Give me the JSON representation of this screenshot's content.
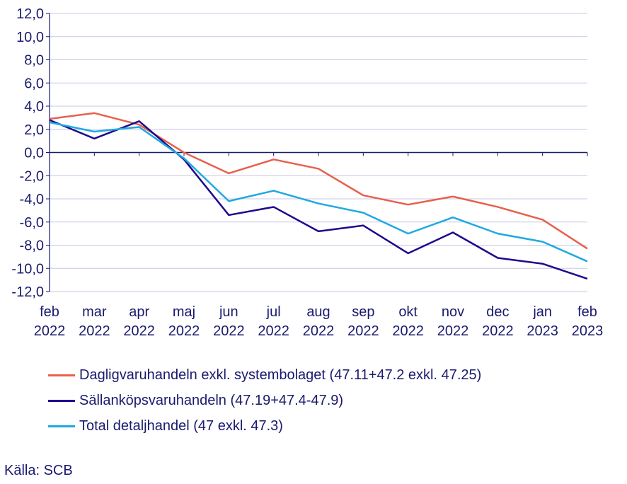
{
  "chart_data": {
    "type": "line",
    "x_top": [
      "feb",
      "mar",
      "apr",
      "maj",
      "jun",
      "jul",
      "aug",
      "sep",
      "okt",
      "nov",
      "dec",
      "jan",
      "feb"
    ],
    "x_bottom": [
      "2022",
      "2022",
      "2022",
      "2022",
      "2022",
      "2022",
      "2022",
      "2022",
      "2022",
      "2022",
      "2022",
      "2023",
      "2023"
    ],
    "ylim": [
      -12,
      12
    ],
    "yticks": [
      12,
      10,
      8,
      6,
      4,
      2,
      0,
      -2,
      -4,
      -6,
      -8,
      -10,
      -12
    ],
    "ytick_labels": [
      "12,0",
      "10,0",
      "8,0",
      "6,0",
      "4,0",
      "2,0",
      "0,0",
      "-2,0",
      "-4,0",
      "-6,0",
      "-8,0",
      "-10,0",
      "-12,0"
    ],
    "grid": true,
    "legend_position": "bottom",
    "series": [
      {
        "name": "Dagligvaruhandeln exkl. systembolaget (47.11+47.2 exkl. 47.25)",
        "color": "#e8604c",
        "values": [
          2.9,
          3.4,
          2.4,
          0.0,
          -1.8,
          -0.6,
          -1.4,
          -3.7,
          -4.5,
          -3.8,
          -4.7,
          -5.8,
          -8.3
        ]
      },
      {
        "name": "Sällanköpsvaruhandeln (47.19+47.4-47.9)",
        "color": "#1e0a8c",
        "values": [
          2.8,
          1.2,
          2.7,
          -0.6,
          -5.4,
          -4.7,
          -6.8,
          -6.3,
          -8.7,
          -6.9,
          -9.1,
          -9.6,
          -10.9
        ]
      },
      {
        "name": "Total detaljhandel (47 exkl. 47.3)",
        "color": "#1fa9e1",
        "values": [
          2.6,
          1.8,
          2.2,
          -0.5,
          -4.2,
          -3.3,
          -4.4,
          -5.2,
          -7.0,
          -5.6,
          -7.0,
          -7.7,
          -9.4
        ]
      }
    ]
  },
  "source": "Källa: SCB"
}
